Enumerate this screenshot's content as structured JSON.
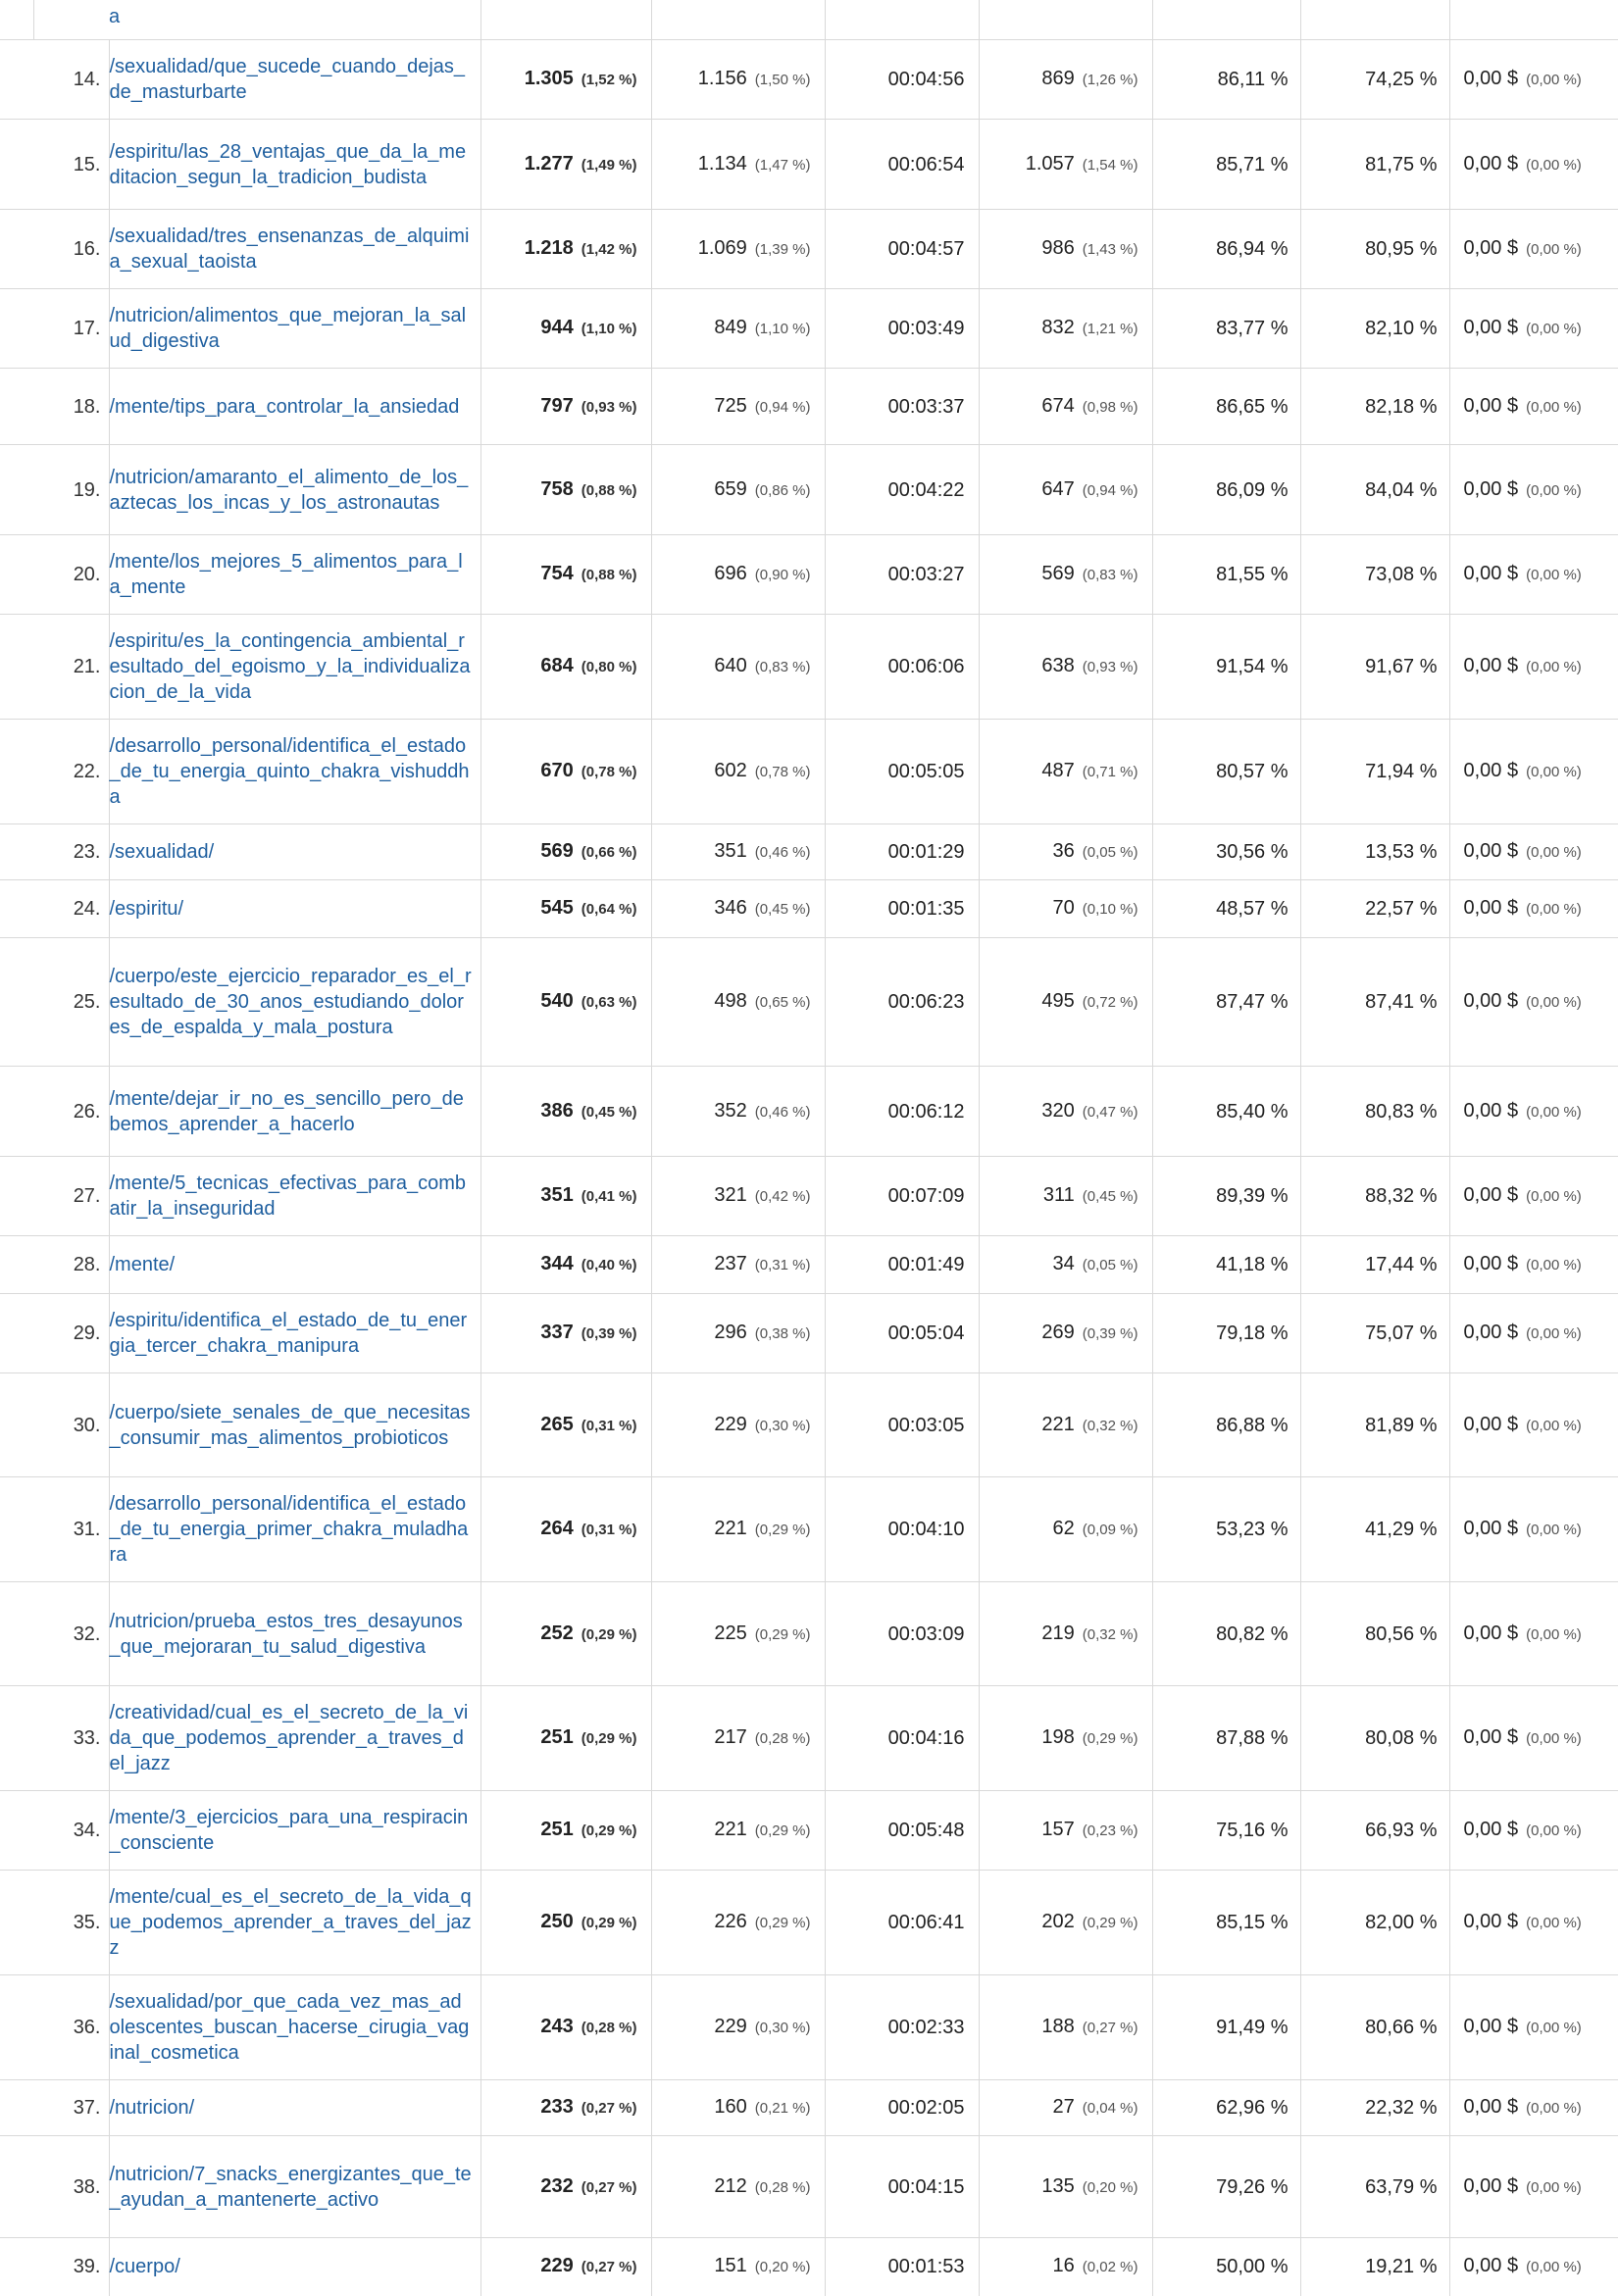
{
  "top_fragment": "a",
  "rows": [
    {
      "idx": "14.",
      "page": "/sexualidad/que_sucede_cuando_dejas_de_masturbarte",
      "pv": "1.305",
      "pv_pct": "(1,52 %)",
      "upv": "1.156",
      "upv_pct": "(1,50 %)",
      "time": "00:04:56",
      "ent": "869",
      "ent_pct": "(1,26 %)",
      "bounce": "86,11 %",
      "exit": "74,25 %",
      "value": "0,00 $",
      "value_pct": "(0,00 %)"
    },
    {
      "idx": "15.",
      "page": "/espiritu/las_28_ventajas_que_da_la_meditacion_segun_la_tradicion_budista",
      "pv": "1.277",
      "pv_pct": "(1,49 %)",
      "upv": "1.134",
      "upv_pct": "(1,47 %)",
      "time": "00:06:54",
      "ent": "1.057",
      "ent_pct": "(1,54 %)",
      "bounce": "85,71 %",
      "exit": "81,75 %",
      "value": "0,00 $",
      "value_pct": "(0,00 %)"
    },
    {
      "idx": "16.",
      "page": "/sexualidad/tres_ensenanzas_de_alquimia_sexual_taoista",
      "pv": "1.218",
      "pv_pct": "(1,42 %)",
      "upv": "1.069",
      "upv_pct": "(1,39 %)",
      "time": "00:04:57",
      "ent": "986",
      "ent_pct": "(1,43 %)",
      "bounce": "86,94 %",
      "exit": "80,95 %",
      "value": "0,00 $",
      "value_pct": "(0,00 %)"
    },
    {
      "idx": "17.",
      "page": "/nutricion/alimentos_que_mejoran_la_salud_digestiva",
      "pv": "944",
      "pv_pct": "(1,10 %)",
      "upv": "849",
      "upv_pct": "(1,10 %)",
      "time": "00:03:49",
      "ent": "832",
      "ent_pct": "(1,21 %)",
      "bounce": "83,77 %",
      "exit": "82,10 %",
      "value": "0,00 $",
      "value_pct": "(0,00 %)"
    },
    {
      "idx": "18.",
      "page": "/mente/tips_para_controlar_la_ansiedad",
      "pv": "797",
      "pv_pct": "(0,93 %)",
      "upv": "725",
      "upv_pct": "(0,94 %)",
      "time": "00:03:37",
      "ent": "674",
      "ent_pct": "(0,98 %)",
      "bounce": "86,65 %",
      "exit": "82,18 %",
      "value": "0,00 $",
      "value_pct": "(0,00 %)"
    },
    {
      "idx": "19.",
      "page": "/nutricion/amaranto_el_alimento_de_los_aztecas_los_incas_y_los_astronautas",
      "pv": "758",
      "pv_pct": "(0,88 %)",
      "upv": "659",
      "upv_pct": "(0,86 %)",
      "time": "00:04:22",
      "ent": "647",
      "ent_pct": "(0,94 %)",
      "bounce": "86,09 %",
      "exit": "84,04 %",
      "value": "0,00 $",
      "value_pct": "(0,00 %)"
    },
    {
      "idx": "20.",
      "page": "/mente/los_mejores_5_alimentos_para_la_mente",
      "pv": "754",
      "pv_pct": "(0,88 %)",
      "upv": "696",
      "upv_pct": "(0,90 %)",
      "time": "00:03:27",
      "ent": "569",
      "ent_pct": "(0,83 %)",
      "bounce": "81,55 %",
      "exit": "73,08 %",
      "value": "0,00 $",
      "value_pct": "(0,00 %)"
    },
    {
      "idx": "21.",
      "page": "/espiritu/es_la_contingencia_ambiental_resultado_del_egoismo_y_la_individualizacion_de_la_vida",
      "pv": "684",
      "pv_pct": "(0,80 %)",
      "upv": "640",
      "upv_pct": "(0,83 %)",
      "time": "00:06:06",
      "ent": "638",
      "ent_pct": "(0,93 %)",
      "bounce": "91,54 %",
      "exit": "91,67 %",
      "value": "0,00 $",
      "value_pct": "(0,00 %)"
    },
    {
      "idx": "22.",
      "page": "/desarrollo_personal/identifica_el_estado_de_tu_energia_quinto_chakra_vishuddha",
      "pv": "670",
      "pv_pct": "(0,78 %)",
      "upv": "602",
      "upv_pct": "(0,78 %)",
      "time": "00:05:05",
      "ent": "487",
      "ent_pct": "(0,71 %)",
      "bounce": "80,57 %",
      "exit": "71,94 %",
      "value": "0,00 $",
      "value_pct": "(0,00 %)"
    },
    {
      "idx": "23.",
      "page": "/sexualidad/",
      "pv": "569",
      "pv_pct": "(0,66 %)",
      "upv": "351",
      "upv_pct": "(0,46 %)",
      "time": "00:01:29",
      "ent": "36",
      "ent_pct": "(0,05 %)",
      "bounce": "30,56 %",
      "exit": "13,53 %",
      "value": "0,00 $",
      "value_pct": "(0,00 %)"
    },
    {
      "idx": "24.",
      "page": "/espiritu/",
      "pv": "545",
      "pv_pct": "(0,64 %)",
      "upv": "346",
      "upv_pct": "(0,45 %)",
      "time": "00:01:35",
      "ent": "70",
      "ent_pct": "(0,10 %)",
      "bounce": "48,57 %",
      "exit": "22,57 %",
      "value": "0,00 $",
      "value_pct": "(0,00 %)"
    },
    {
      "idx": "25.",
      "page": "/cuerpo/este_ejercicio_reparador_es_el_resultado_de_30_anos_estudiando_dolores_de_espalda_y_mala_postura",
      "pv": "540",
      "pv_pct": "(0,63 %)",
      "upv": "498",
      "upv_pct": "(0,65 %)",
      "time": "00:06:23",
      "ent": "495",
      "ent_pct": "(0,72 %)",
      "bounce": "87,47 %",
      "exit": "87,41 %",
      "value": "0,00 $",
      "value_pct": "(0,00 %)"
    },
    {
      "idx": "26.",
      "page": "/mente/dejar_ir_no_es_sencillo_pero_debemos_aprender_a_hacerlo",
      "pv": "386",
      "pv_pct": "(0,45 %)",
      "upv": "352",
      "upv_pct": "(0,46 %)",
      "time": "00:06:12",
      "ent": "320",
      "ent_pct": "(0,47 %)",
      "bounce": "85,40 %",
      "exit": "80,83 %",
      "value": "0,00 $",
      "value_pct": "(0,00 %)"
    },
    {
      "idx": "27.",
      "page": "/mente/5_tecnicas_efectivas_para_combatir_la_inseguridad",
      "pv": "351",
      "pv_pct": "(0,41 %)",
      "upv": "321",
      "upv_pct": "(0,42 %)",
      "time": "00:07:09",
      "ent": "311",
      "ent_pct": "(0,45 %)",
      "bounce": "89,39 %",
      "exit": "88,32 %",
      "value": "0,00 $",
      "value_pct": "(0,00 %)"
    },
    {
      "idx": "28.",
      "page": "/mente/",
      "pv": "344",
      "pv_pct": "(0,40 %)",
      "upv": "237",
      "upv_pct": "(0,31 %)",
      "time": "00:01:49",
      "ent": "34",
      "ent_pct": "(0,05 %)",
      "bounce": "41,18 %",
      "exit": "17,44 %",
      "value": "0,00 $",
      "value_pct": "(0,00 %)"
    },
    {
      "idx": "29.",
      "page": "/espiritu/identifica_el_estado_de_tu_energia_tercer_chakra_manipura",
      "pv": "337",
      "pv_pct": "(0,39 %)",
      "upv": "296",
      "upv_pct": "(0,38 %)",
      "time": "00:05:04",
      "ent": "269",
      "ent_pct": "(0,39 %)",
      "bounce": "79,18 %",
      "exit": "75,07 %",
      "value": "0,00 $",
      "value_pct": "(0,00 %)"
    },
    {
      "idx": "30.",
      "page": "/cuerpo/siete_senales_de_que_necesitas_consumir_mas_alimentos_probioticos",
      "pv": "265",
      "pv_pct": "(0,31 %)",
      "upv": "229",
      "upv_pct": "(0,30 %)",
      "time": "00:03:05",
      "ent": "221",
      "ent_pct": "(0,32 %)",
      "bounce": "86,88 %",
      "exit": "81,89 %",
      "value": "0,00 $",
      "value_pct": "(0,00 %)"
    },
    {
      "idx": "31.",
      "page": "/desarrollo_personal/identifica_el_estado_de_tu_energia_primer_chakra_muladhara",
      "pv": "264",
      "pv_pct": "(0,31 %)",
      "upv": "221",
      "upv_pct": "(0,29 %)",
      "time": "00:04:10",
      "ent": "62",
      "ent_pct": "(0,09 %)",
      "bounce": "53,23 %",
      "exit": "41,29 %",
      "value": "0,00 $",
      "value_pct": "(0,00 %)"
    },
    {
      "idx": "32.",
      "page": "/nutricion/prueba_estos_tres_desayunos_que_mejoraran_tu_salud_digestiva",
      "pv": "252",
      "pv_pct": "(0,29 %)",
      "upv": "225",
      "upv_pct": "(0,29 %)",
      "time": "00:03:09",
      "ent": "219",
      "ent_pct": "(0,32 %)",
      "bounce": "80,82 %",
      "exit": "80,56 %",
      "value": "0,00 $",
      "value_pct": "(0,00 %)"
    },
    {
      "idx": "33.",
      "page": "/creatividad/cual_es_el_secreto_de_la_vida_que_podemos_aprender_a_traves_del_jazz",
      "pv": "251",
      "pv_pct": "(0,29 %)",
      "upv": "217",
      "upv_pct": "(0,28 %)",
      "time": "00:04:16",
      "ent": "198",
      "ent_pct": "(0,29 %)",
      "bounce": "87,88 %",
      "exit": "80,08 %",
      "value": "0,00 $",
      "value_pct": "(0,00 %)"
    },
    {
      "idx": "34.",
      "page": "/mente/3_ejercicios_para_una_respiracin_consciente",
      "pv": "251",
      "pv_pct": "(0,29 %)",
      "upv": "221",
      "upv_pct": "(0,29 %)",
      "time": "00:05:48",
      "ent": "157",
      "ent_pct": "(0,23 %)",
      "bounce": "75,16 %",
      "exit": "66,93 %",
      "value": "0,00 $",
      "value_pct": "(0,00 %)"
    },
    {
      "idx": "35.",
      "page": "/mente/cual_es_el_secreto_de_la_vida_que_podemos_aprender_a_traves_del_jazz",
      "pv": "250",
      "pv_pct": "(0,29 %)",
      "upv": "226",
      "upv_pct": "(0,29 %)",
      "time": "00:06:41",
      "ent": "202",
      "ent_pct": "(0,29 %)",
      "bounce": "85,15 %",
      "exit": "82,00 %",
      "value": "0,00 $",
      "value_pct": "(0,00 %)"
    },
    {
      "idx": "36.",
      "page": "/sexualidad/por_que_cada_vez_mas_adolescentes_buscan_hacerse_cirugia_vaginal_cosmetica",
      "pv": "243",
      "pv_pct": "(0,28 %)",
      "upv": "229",
      "upv_pct": "(0,30 %)",
      "time": "00:02:33",
      "ent": "188",
      "ent_pct": "(0,27 %)",
      "bounce": "91,49 %",
      "exit": "80,66 %",
      "value": "0,00 $",
      "value_pct": "(0,00 %)"
    },
    {
      "idx": "37.",
      "page": "/nutricion/",
      "pv": "233",
      "pv_pct": "(0,27 %)",
      "upv": "160",
      "upv_pct": "(0,21 %)",
      "time": "00:02:05",
      "ent": "27",
      "ent_pct": "(0,04 %)",
      "bounce": "62,96 %",
      "exit": "22,32 %",
      "value": "0,00 $",
      "value_pct": "(0,00 %)"
    },
    {
      "idx": "38.",
      "page": "/nutricion/7_snacks_energizantes_que_te_ayudan_a_mantenerte_activo",
      "pv": "232",
      "pv_pct": "(0,27 %)",
      "upv": "212",
      "upv_pct": "(0,28 %)",
      "time": "00:04:15",
      "ent": "135",
      "ent_pct": "(0,20 %)",
      "bounce": "79,26 %",
      "exit": "63,79 %",
      "value": "0,00 $",
      "value_pct": "(0,00 %)"
    },
    {
      "idx": "39.",
      "page": "/cuerpo/",
      "pv": "229",
      "pv_pct": "(0,27 %)",
      "upv": "151",
      "upv_pct": "(0,20 %)",
      "time": "00:01:53",
      "ent": "16",
      "ent_pct": "(0,02 %)",
      "bounce": "50,00 %",
      "exit": "19,21 %",
      "value": "0,00 $",
      "value_pct": "(0,00 %)"
    }
  ]
}
